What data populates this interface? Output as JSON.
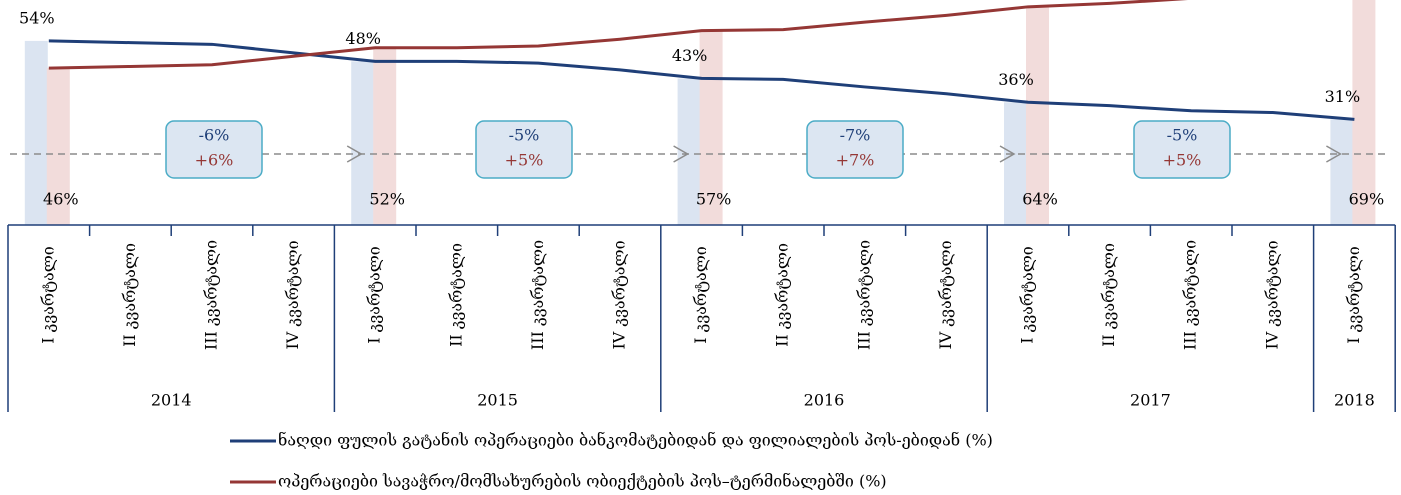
{
  "chart_data": {
    "type": "line",
    "categories": [
      "I კვარტალი",
      "II კვარტალი",
      "III კვარტალი",
      "IV კვარტალი",
      "I კვარტალი",
      "II კვარტალი",
      "III კვარტალი",
      "IV კვარტალი",
      "I კვარტალი",
      "II კვარტალი",
      "III კვარტალი",
      "IV კვარტალი",
      "I კვარტალი",
      "II კვარტალი",
      "III კვარტალი",
      "IV კვარტალი",
      "I კვარტალი"
    ],
    "years": [
      "2014",
      "2015",
      "2016",
      "2017",
      "2018"
    ],
    "ylim": [
      0,
      66
    ],
    "series": [
      {
        "name": "ნაღდი ფულის გატანის ოპერაციები ბანკომატებიდან და  ფილიალების პოს-ებიდან (%)",
        "color": "#1f3f78",
        "values": [
          54,
          53.5,
          53,
          50.5,
          48,
          48,
          47.5,
          45.5,
          43,
          42.7,
          40.5,
          38.5,
          36,
          35,
          33.5,
          33,
          31
        ],
        "value_labels": [
          "54%",
          null,
          null,
          null,
          "48%",
          null,
          null,
          null,
          "43%",
          null,
          null,
          null,
          "36%",
          null,
          null,
          null,
          "31%"
        ],
        "bar_color": "#dbe4f1"
      },
      {
        "name": "ოპერაციები სავაჭრო/მომსახურების ობიექტების პოს–ტერმინალებში (%)",
        "color": "#953735",
        "values": [
          46,
          46.5,
          47,
          49.5,
          52,
          52,
          52.5,
          54.5,
          57,
          57.3,
          59.5,
          61.5,
          64,
          65,
          66.5,
          67,
          69
        ],
        "value_labels": [
          "46%",
          null,
          null,
          null,
          "52%",
          null,
          null,
          null,
          "57%",
          null,
          null,
          null,
          "64%",
          null,
          null,
          null,
          "69%"
        ],
        "bar_color": "#f2dcdb"
      }
    ],
    "annotations": [
      {
        "top": "-6%",
        "bottom": "+6%"
      },
      {
        "top": "-5%",
        "bottom": "+5%"
      },
      {
        "top": "-7%",
        "bottom": "+7%"
      },
      {
        "top": "-5%",
        "bottom": "+5%"
      }
    ]
  }
}
